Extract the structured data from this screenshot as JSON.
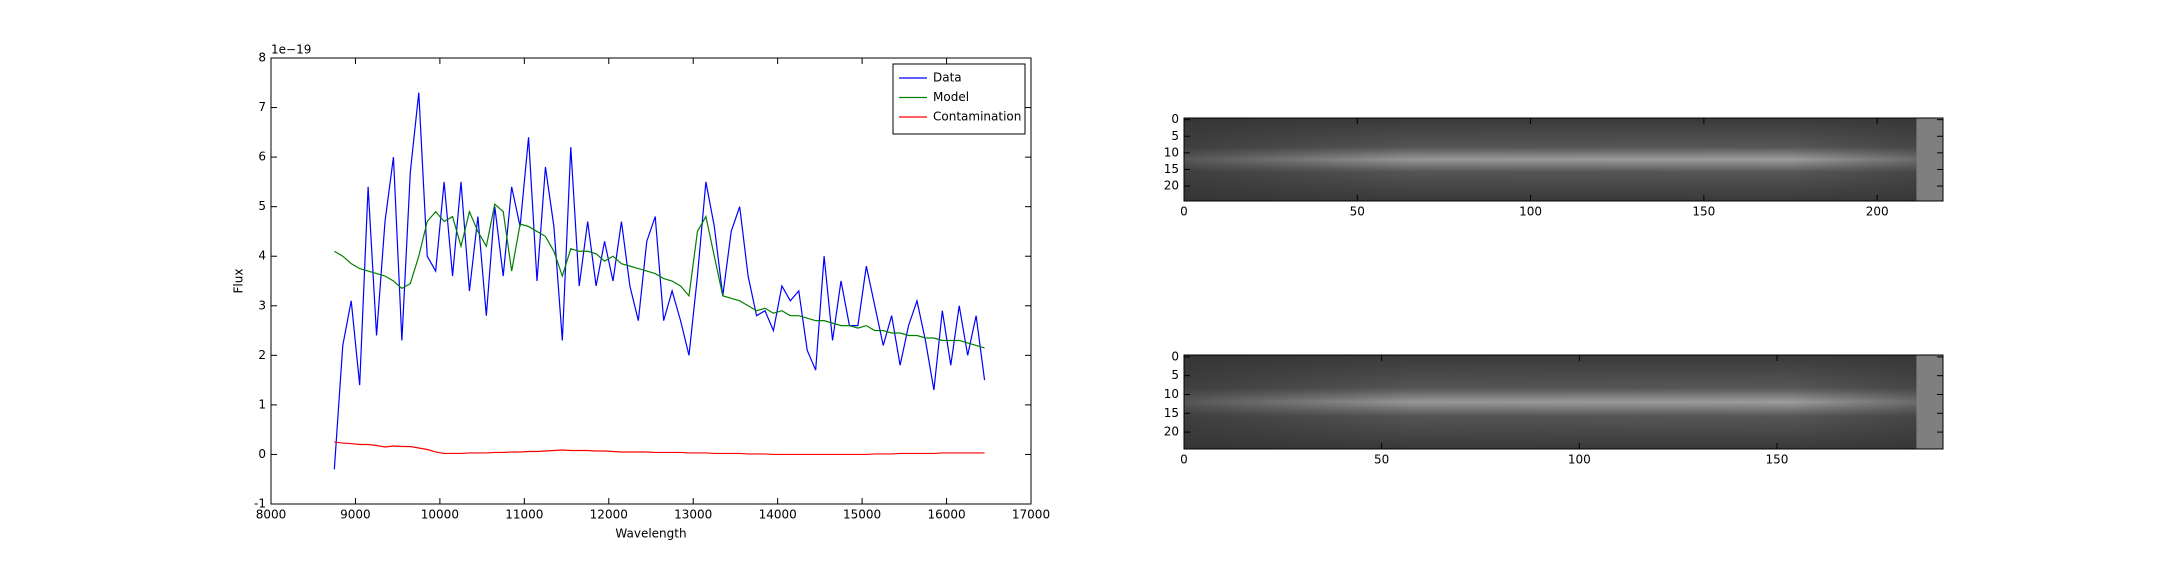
{
  "chart_data": [
    {
      "type": "line",
      "xlabel": "Wavelength",
      "ylabel": "Flux",
      "offset_text": "1e−19",
      "xlim": [
        8000,
        17000
      ],
      "ylim": [
        -1,
        8
      ],
      "xticks": [
        8000,
        9000,
        10000,
        11000,
        12000,
        13000,
        14000,
        15000,
        16000,
        17000
      ],
      "yticks": [
        -1,
        0,
        1,
        2,
        3,
        4,
        5,
        6,
        7,
        8
      ],
      "legend": "upper right",
      "x": [
        8750,
        8850,
        8950,
        9050,
        9150,
        9250,
        9350,
        9450,
        9550,
        9650,
        9750,
        9850,
        9950,
        10050,
        10150,
        10250,
        10350,
        10450,
        10550,
        10650,
        10750,
        10850,
        10950,
        11050,
        11150,
        11250,
        11350,
        11450,
        11550,
        11650,
        11750,
        11850,
        11950,
        12050,
        12150,
        12250,
        12350,
        12450,
        12550,
        12650,
        12750,
        12850,
        12950,
        13050,
        13150,
        13250,
        13350,
        13450,
        13550,
        13650,
        13750,
        13850,
        13950,
        14050,
        14150,
        14250,
        14350,
        14450,
        14550,
        14650,
        14750,
        14850,
        14950,
        15050,
        15150,
        15250,
        15350,
        15450,
        15550,
        15650,
        15750,
        15850,
        15950,
        16050,
        16150,
        16250,
        16350,
        16450
      ],
      "series": [
        {
          "name": "Data",
          "color": "#0000ff",
          "values": [
            -0.3,
            2.2,
            3.1,
            1.4,
            5.4,
            2.4,
            4.7,
            6.0,
            2.3,
            5.7,
            7.3,
            4.0,
            3.7,
            5.5,
            3.6,
            5.5,
            3.3,
            4.8,
            2.8,
            5.0,
            3.6,
            5.4,
            4.6,
            6.4,
            3.5,
            5.8,
            4.6,
            2.3,
            6.2,
            3.4,
            4.7,
            3.4,
            4.3,
            3.5,
            4.7,
            3.4,
            2.7,
            4.3,
            4.8,
            2.7,
            3.3,
            2.7,
            2.0,
            3.6,
            5.5,
            4.6,
            3.2,
            4.5,
            5.0,
            3.6,
            2.8,
            2.9,
            2.5,
            3.4,
            3.1,
            3.3,
            2.1,
            1.7,
            4.0,
            2.3,
            3.5,
            2.6,
            2.6,
            3.8,
            3.0,
            2.2,
            2.8,
            1.8,
            2.6,
            3.1,
            2.3,
            1.3,
            2.9,
            1.8,
            3.0,
            2.0,
            2.8,
            1.5
          ]
        },
        {
          "name": "Model",
          "color": "#008000",
          "values": [
            4.1,
            4.0,
            3.85,
            3.75,
            3.7,
            3.65,
            3.6,
            3.5,
            3.35,
            3.45,
            4.0,
            4.7,
            4.9,
            4.7,
            4.8,
            4.2,
            4.9,
            4.5,
            4.2,
            5.05,
            4.9,
            3.7,
            4.65,
            4.6,
            4.5,
            4.4,
            4.1,
            3.6,
            4.15,
            4.1,
            4.1,
            4.05,
            3.9,
            4.0,
            3.85,
            3.8,
            3.75,
            3.7,
            3.65,
            3.55,
            3.5,
            3.4,
            3.2,
            4.5,
            4.8,
            4.0,
            3.2,
            3.15,
            3.1,
            3.0,
            2.9,
            2.95,
            2.85,
            2.9,
            2.8,
            2.8,
            2.75,
            2.7,
            2.7,
            2.65,
            2.6,
            2.6,
            2.55,
            2.6,
            2.5,
            2.5,
            2.45,
            2.45,
            2.4,
            2.4,
            2.35,
            2.35,
            2.3,
            2.3,
            2.3,
            2.25,
            2.2,
            2.15
          ]
        },
        {
          "name": "Contamination",
          "color": "#ff0000",
          "values": [
            0.25,
            0.23,
            0.22,
            0.2,
            0.2,
            0.18,
            0.15,
            0.17,
            0.16,
            0.16,
            0.13,
            0.1,
            0.05,
            0.02,
            0.02,
            0.02,
            0.03,
            0.03,
            0.03,
            0.04,
            0.04,
            0.05,
            0.05,
            0.06,
            0.06,
            0.07,
            0.08,
            0.09,
            0.08,
            0.08,
            0.08,
            0.07,
            0.07,
            0.06,
            0.05,
            0.05,
            0.05,
            0.05,
            0.04,
            0.04,
            0.04,
            0.04,
            0.03,
            0.03,
            0.03,
            0.02,
            0.02,
            0.02,
            0.02,
            0.01,
            0.01,
            0.01,
            0.0,
            0.0,
            0.0,
            0.0,
            0.0,
            0.0,
            0.0,
            0.0,
            0.0,
            0.0,
            0.0,
            0.0,
            0.01,
            0.01,
            0.01,
            0.02,
            0.02,
            0.02,
            0.02,
            0.02,
            0.03,
            0.03,
            0.03,
            0.03,
            0.03,
            0.03
          ]
        }
      ]
    },
    {
      "type": "image",
      "xlim": [
        0,
        219
      ],
      "ylim": [
        24.5,
        -0.5
      ],
      "xticks": [
        0,
        50,
        100,
        150,
        200
      ],
      "yticks": [
        0,
        5,
        10,
        15,
        20
      ]
    },
    {
      "type": "image",
      "xlim": [
        0,
        192
      ],
      "ylim": [
        24.5,
        -0.5
      ],
      "xticks": [
        0,
        50,
        100,
        150
      ],
      "yticks": [
        0,
        5,
        10,
        15,
        20
      ]
    }
  ]
}
